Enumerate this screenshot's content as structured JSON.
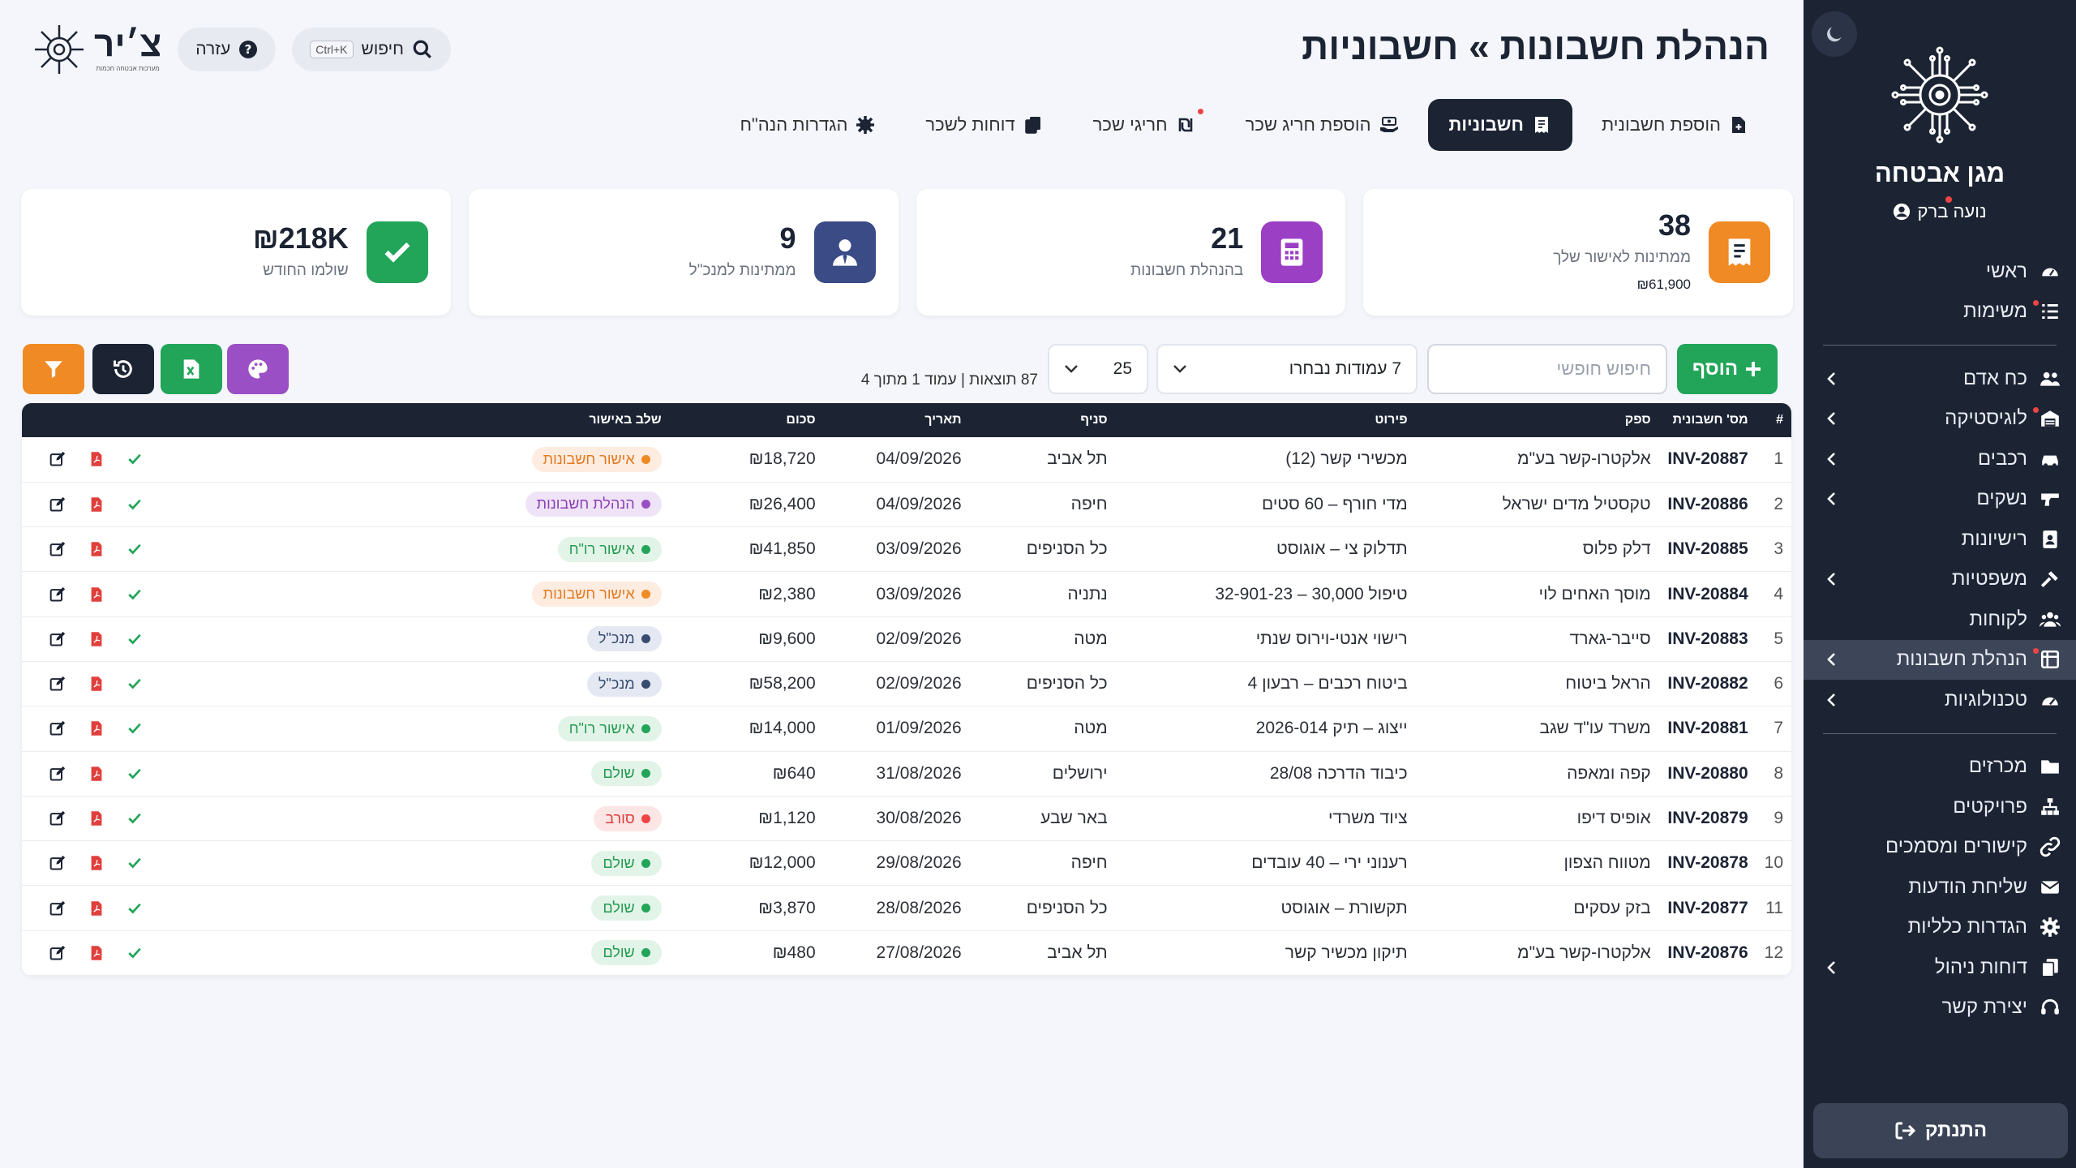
{
  "sidebar": {
    "company": "מגן אבטחה",
    "user": "נועה ברק",
    "items": [
      {
        "label": "ראשי",
        "icon": "gauge-icon",
        "chevron": false,
        "dot": false,
        "active": false
      },
      {
        "label": "משימות",
        "icon": "tasks-icon",
        "chevron": false,
        "dot": true,
        "active": false
      },
      {
        "sep": true
      },
      {
        "label": "כח אדם",
        "icon": "users-icon",
        "chevron": true,
        "dot": false,
        "active": false
      },
      {
        "label": "לוגיסטיקה",
        "icon": "warehouse-icon",
        "chevron": true,
        "dot": true,
        "active": false
      },
      {
        "label": "רכבים",
        "icon": "car-icon",
        "chevron": true,
        "dot": false,
        "active": false
      },
      {
        "label": "נשקים",
        "icon": "gun-icon",
        "chevron": true,
        "dot": false,
        "active": false
      },
      {
        "label": "רישיונות",
        "icon": "id-card-icon",
        "chevron": false,
        "dot": false,
        "active": false
      },
      {
        "label": "משפטיות",
        "icon": "gavel-icon",
        "chevron": true,
        "dot": false,
        "active": false
      },
      {
        "label": "לקוחות",
        "icon": "clients-icon",
        "chevron": false,
        "dot": false,
        "active": false
      },
      {
        "label": "הנהלת חשבונות",
        "icon": "ledger-icon",
        "chevron": true,
        "dot": true,
        "active": true
      },
      {
        "label": "טכנולוגיות",
        "icon": "tech-icon",
        "chevron": true,
        "dot": false,
        "active": false
      },
      {
        "sep": true
      },
      {
        "label": "מכרזים",
        "icon": "folder-icon",
        "chevron": false,
        "dot": false,
        "active": false
      },
      {
        "label": "פרויקטים",
        "icon": "sitemap-icon",
        "chevron": false,
        "dot": false,
        "active": false
      },
      {
        "label": "קישורים ומסמכים",
        "icon": "link-icon",
        "chevron": false,
        "dot": false,
        "active": false
      },
      {
        "label": "שליחת הודעות",
        "icon": "envelope-icon",
        "chevron": false,
        "dot": false,
        "active": false
      },
      {
        "label": "הגדרות כלליות",
        "icon": "gear-icon",
        "chevron": false,
        "dot": false,
        "active": false
      },
      {
        "label": "דוחות ניהול",
        "icon": "copy-icon",
        "chevron": true,
        "dot": false,
        "active": false
      },
      {
        "label": "יצירת קשר",
        "icon": "headset-icon",
        "chevron": false,
        "dot": false,
        "active": false
      }
    ],
    "logout": "התנתק"
  },
  "header": {
    "title": "הנהלת חשבונות » חשבוניות",
    "search_label": "חיפוש",
    "search_kbd": "Ctrl+K",
    "help_label": "עזרה",
    "brand": "צ׳יר",
    "brand_sub": "מערכות אבטחה חכמות"
  },
  "tabs": [
    {
      "label": "הוספת חשבונית",
      "icon": "file-plus-icon",
      "active": false,
      "dot": false
    },
    {
      "label": "חשבוניות",
      "icon": "receipt-icon",
      "active": true,
      "dot": false
    },
    {
      "label": "הוספת חריג שכר",
      "icon": "money-hand-icon",
      "active": false,
      "dot": false
    },
    {
      "label": "חריגי שכר",
      "icon": "shekel-icon",
      "active": false,
      "dot": true
    },
    {
      "label": "דוחות לשכר",
      "icon": "copy-icon",
      "active": false,
      "dot": false
    },
    {
      "label": "הגדרות הנה\"ח",
      "icon": "gear-icon",
      "active": false,
      "dot": false
    }
  ],
  "cards": [
    {
      "value": "38",
      "label": "ממתינות לאישור שלך",
      "sub": "₪61,900",
      "color": "#f08a24",
      "icon": "receipt-icon"
    },
    {
      "value": "21",
      "label": "בהנהלת חשבונות",
      "sub": "",
      "color": "#9b3fc4",
      "icon": "calculator-icon"
    },
    {
      "value": "9",
      "label": "ממתינות למנכ\"ל",
      "sub": "",
      "color": "#3a4b86",
      "icon": "user-tie-icon"
    },
    {
      "value": "₪218K",
      "label": "שולמו החודש",
      "sub": "",
      "color": "#22a559",
      "icon": "check-icon"
    }
  ],
  "toolbar": {
    "add_label": "הוסף",
    "search_placeholder": "חיפוש חופשי",
    "columns_label": "7 עמודות נבחרו",
    "per_page": "25",
    "results": "87 תוצאות | עמוד 1 מתוך 4"
  },
  "table": {
    "headers": [
      "#",
      "מס' חשבונית",
      "ספק",
      "פירוט",
      "סניף",
      "תאריך",
      "סכום",
      "שלב באישור",
      ""
    ],
    "rows": [
      [
        "1",
        "INV-20887",
        "אלקטרו-קשר בע\"מ",
        "מכשירי קשר (12)",
        "תל אביב",
        "04/09/2026",
        "₪18,720",
        "אישור חשבונות",
        "orange"
      ],
      [
        "2",
        "INV-20886",
        "טקסטיל מדים ישראל",
        "מדי חורף – 60 סטים",
        "חיפה",
        "04/09/2026",
        "₪26,400",
        "הנהלת חשבונות",
        "purple"
      ],
      [
        "3",
        "INV-20885",
        "דלק פלוס",
        "תדלוק צי – אוגוסט",
        "כל הסניפים",
        "03/09/2026",
        "₪41,850",
        "אישור רו\"ח",
        "green"
      ],
      [
        "4",
        "INV-20884",
        "מוסך האחים לוי",
        "טיפול 30,000 – 32-901-23",
        "נתניה",
        "03/09/2026",
        "₪2,380",
        "אישור חשבונות",
        "orange"
      ],
      [
        "5",
        "INV-20883",
        "סייבר-גארד",
        "רישוי אנטי-וירוס שנתי",
        "מטה",
        "02/09/2026",
        "₪9,600",
        "מנכ\"ל",
        "blue"
      ],
      [
        "6",
        "INV-20882",
        "הראל ביטוח",
        "ביטוח רכבים – רבעון 4",
        "כל הסניפים",
        "02/09/2026",
        "₪58,200",
        "מנכ\"ל",
        "blue"
      ],
      [
        "7",
        "INV-20881",
        "משרד עו\"ד שגב",
        "ייצוג – תיק 2026-014",
        "מטה",
        "01/09/2026",
        "₪14,000",
        "אישור רו\"ח",
        "green"
      ],
      [
        "8",
        "INV-20880",
        "קפה ומאפה",
        "כיבוד הדרכה 28/08",
        "ירושלים",
        "31/08/2026",
        "₪640",
        "שולם",
        "green"
      ],
      [
        "9",
        "INV-20879",
        "אופיס דיפו",
        "ציוד משרדי",
        "באר שבע",
        "30/08/2026",
        "₪1,120",
        "סורב",
        "red"
      ],
      [
        "10",
        "INV-20878",
        "מטווח הצפון",
        "רענוני ירי – 40 עובדים",
        "חיפה",
        "29/08/2026",
        "₪12,000",
        "שולם",
        "green"
      ],
      [
        "11",
        "INV-20877",
        "בזק עסקים",
        "תקשורת – אוגוסט",
        "כל הסניפים",
        "28/08/2026",
        "₪3,870",
        "שולם",
        "green"
      ],
      [
        "12",
        "INV-20876",
        "אלקטרו-קשר בע\"מ",
        "תיקון מכשיר קשר",
        "תל אביב",
        "27/08/2026",
        "₪480",
        "שולם",
        "green"
      ]
    ]
  },
  "colors": {
    "navy": "#1c2434",
    "green": "#22a559",
    "orange": "#f08a24",
    "purple": "#9b4fc4",
    "pdf": "#e0403c"
  }
}
